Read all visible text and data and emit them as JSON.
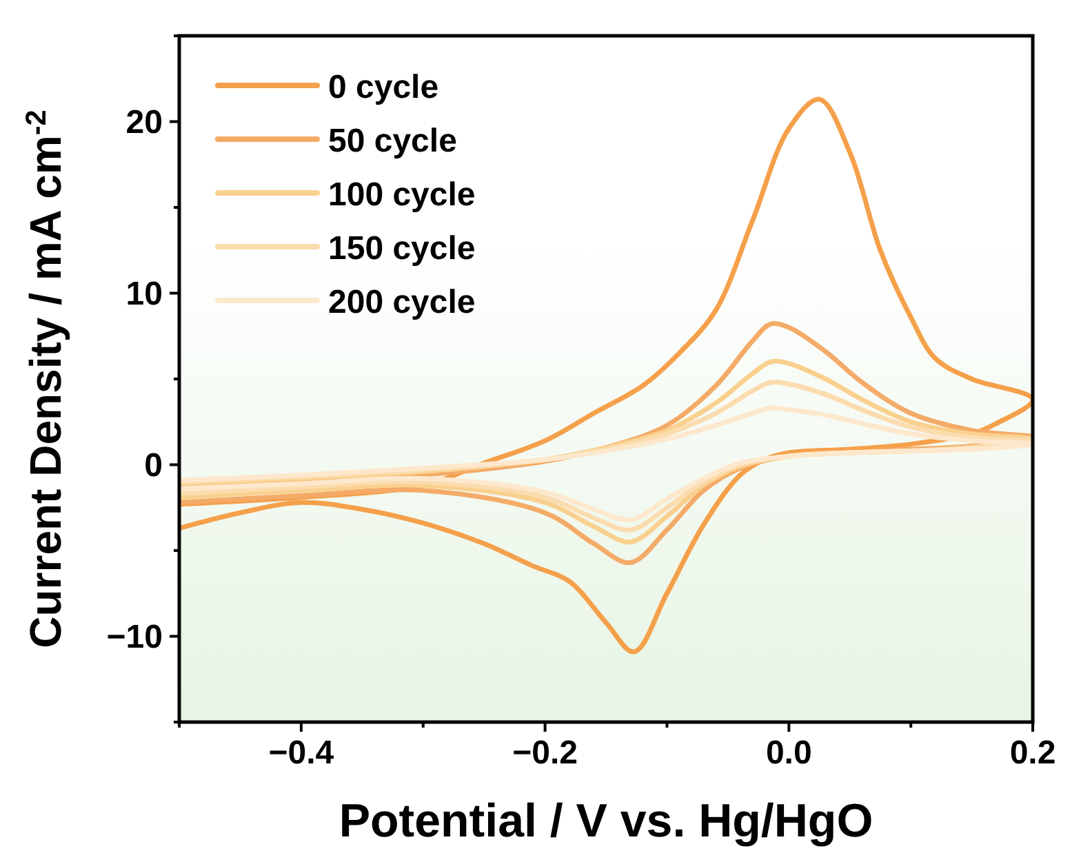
{
  "chart_data": {
    "type": "line",
    "xlabel": "Potential / V vs. Hg/HgO",
    "ylabel": "Current Density / mA cm$^{-2}$",
    "xlim": [
      -0.5,
      0.2
    ],
    "ylim": [
      -15,
      25
    ],
    "xticks": [
      {
        "value": -0.5,
        "label": null
      },
      -0.4,
      {
        "value": -0.3,
        "label": null
      },
      -0.2,
      {
        "value": -0.1,
        "label": null
      },
      {
        "value": 0,
        "label": "0.0"
      },
      {
        "value": 0.1,
        "label": null
      },
      0.2
    ],
    "yticks": [
      {
        "value": -15,
        "label": null
      },
      -10,
      {
        "value": -5,
        "label": null
      },
      0,
      {
        "value": 5,
        "label": null
      },
      10,
      {
        "value": 15,
        "label": null
      },
      20,
      {
        "value": 25,
        "label": null
      }
    ],
    "grid": false,
    "legend": "top left",
    "line_style": "solid",
    "series": [
      {
        "name": "0 cycle",
        "color": "#f5a04a",
        "x": [
          -0.5,
          -0.4,
          -0.3,
          -0.25,
          -0.2,
          -0.16,
          -0.12,
          -0.09,
          -0.06,
          -0.03,
          0.0,
          0.025,
          0.05,
          0.075,
          0.1,
          0.12,
          0.15,
          0.2,
          0.17,
          0.15,
          0.1,
          0.05,
          0.0,
          -0.02,
          -0.04,
          -0.07,
          -0.1,
          -0.127,
          -0.15,
          -0.18,
          -0.21,
          -0.25,
          -0.3,
          -0.35,
          -0.4,
          -0.45,
          -0.5
        ],
        "values": [
          -2.3,
          -1.9,
          -1.2,
          0.1,
          1.4,
          3.0,
          4.6,
          6.5,
          9.0,
          14.2,
          19.6,
          21.3,
          18.2,
          12.5,
          8.6,
          6.2,
          5.0,
          3.8,
          2.4,
          1.8,
          1.2,
          0.9,
          0.7,
          0.3,
          -0.6,
          -3.5,
          -7.5,
          -10.9,
          -9.2,
          -6.8,
          -5.9,
          -4.6,
          -3.4,
          -2.6,
          -2.2,
          -2.8,
          -3.7
        ]
      },
      {
        "name": "50 cycle",
        "color": "#f4ab68",
        "x": [
          -0.5,
          -0.4,
          -0.3,
          -0.2,
          -0.15,
          -0.1,
          -0.06,
          -0.03,
          -0.015,
          0.0,
          0.03,
          0.06,
          0.1,
          0.15,
          0.2,
          0.15,
          0.1,
          0.05,
          0.0,
          -0.04,
          -0.07,
          -0.1,
          -0.13,
          -0.16,
          -0.2,
          -0.3,
          -0.4,
          -0.5
        ],
        "values": [
          -1.3,
          -1.0,
          -0.6,
          0.2,
          1.0,
          2.3,
          4.6,
          7.2,
          8.2,
          8.0,
          6.6,
          4.8,
          3.0,
          2.0,
          1.6,
          1.1,
          0.9,
          0.7,
          0.5,
          -0.2,
          -1.5,
          -3.8,
          -5.7,
          -4.6,
          -2.8,
          -1.5,
          -1.8,
          -2.2
        ]
      },
      {
        "name": "100 cycle",
        "color": "#fad08e",
        "x": [
          -0.5,
          -0.4,
          -0.3,
          -0.2,
          -0.15,
          -0.1,
          -0.06,
          -0.03,
          -0.015,
          0.0,
          0.03,
          0.06,
          0.1,
          0.15,
          0.2,
          0.15,
          0.1,
          0.05,
          0.0,
          -0.04,
          -0.07,
          -0.1,
          -0.13,
          -0.16,
          -0.2,
          -0.3,
          -0.4,
          -0.5
        ],
        "values": [
          -1.1,
          -0.8,
          -0.4,
          0.3,
          1.0,
          2.0,
          3.6,
          5.3,
          6.0,
          5.9,
          5.0,
          3.8,
          2.5,
          1.8,
          1.5,
          1.0,
          0.8,
          0.7,
          0.5,
          -0.1,
          -1.2,
          -3.0,
          -4.5,
          -3.6,
          -2.2,
          -1.2,
          -1.5,
          -1.9
        ]
      },
      {
        "name": "150 cycle",
        "color": "#fbdcae",
        "x": [
          -0.5,
          -0.4,
          -0.3,
          -0.2,
          -0.15,
          -0.1,
          -0.06,
          -0.03,
          -0.015,
          0.0,
          0.03,
          0.06,
          0.1,
          0.15,
          0.2,
          0.15,
          0.1,
          0.05,
          0.0,
          -0.04,
          -0.07,
          -0.1,
          -0.13,
          -0.16,
          -0.2,
          -0.3,
          -0.4,
          -0.5
        ],
        "values": [
          -1.0,
          -0.7,
          -0.3,
          0.3,
          0.9,
          1.8,
          3.0,
          4.3,
          4.8,
          4.7,
          4.1,
          3.2,
          2.2,
          1.6,
          1.4,
          1.0,
          0.8,
          0.7,
          0.5,
          0.0,
          -1.0,
          -2.5,
          -3.8,
          -3.1,
          -1.9,
          -1.0,
          -1.3,
          -1.7
        ]
      },
      {
        "name": "200 cycle",
        "color": "#fde8cd",
        "x": [
          -0.5,
          -0.4,
          -0.3,
          -0.2,
          -0.15,
          -0.1,
          -0.06,
          -0.03,
          -0.015,
          0.0,
          0.03,
          0.06,
          0.1,
          0.15,
          0.2,
          0.15,
          0.1,
          0.05,
          0.0,
          -0.04,
          -0.07,
          -0.1,
          -0.13,
          -0.16,
          -0.2,
          -0.3,
          -0.4,
          -0.5
        ],
        "values": [
          -0.9,
          -0.6,
          -0.2,
          0.3,
          0.8,
          1.5,
          2.3,
          3.0,
          3.3,
          3.2,
          2.9,
          2.4,
          1.8,
          1.4,
          1.2,
          0.9,
          0.8,
          0.7,
          0.5,
          0.1,
          -0.8,
          -2.0,
          -3.2,
          -2.6,
          -1.6,
          -0.8,
          -1.1,
          -1.4
        ]
      }
    ]
  }
}
